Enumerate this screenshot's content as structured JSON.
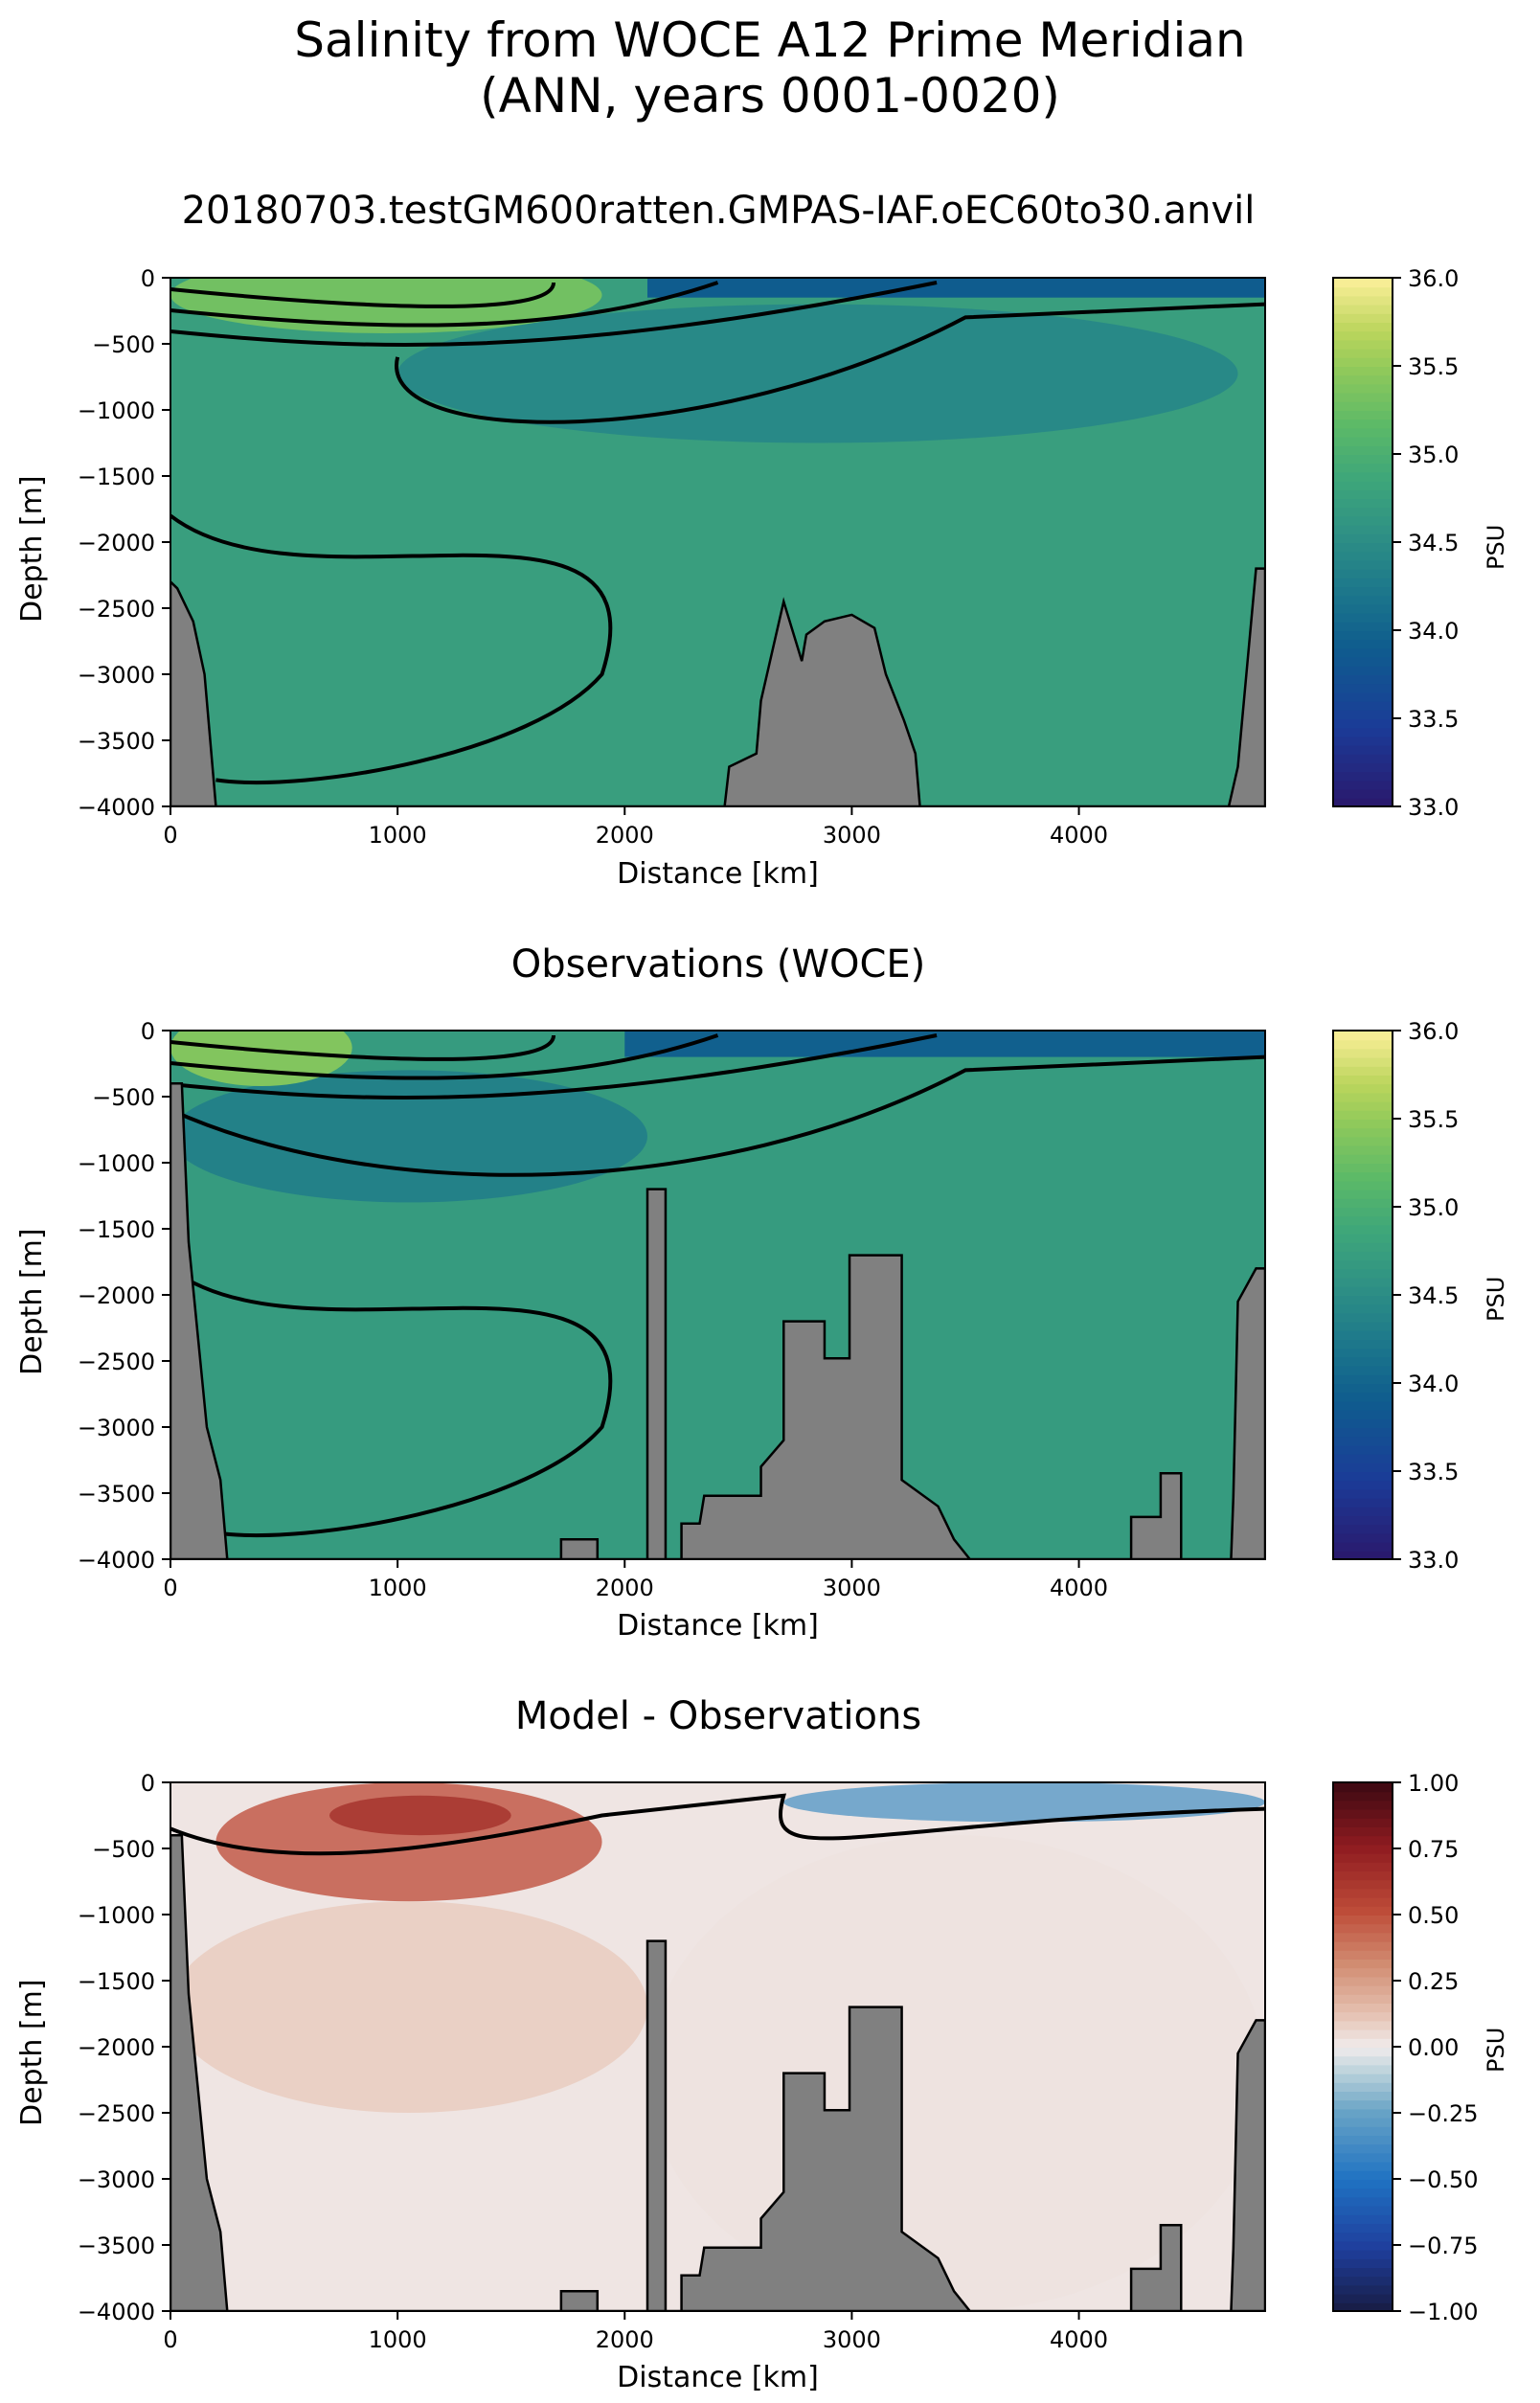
{
  "figure": {
    "title_line1": "Salinity from WOCE A12 Prime Meridian",
    "title_line2": "(ANN, years 0001-0020)"
  },
  "chart_data": [
    {
      "type": "heatmap",
      "title": "20180703.testGM600ratten.GMPAS-IAF.oEC60to30.anvil",
      "xlabel": "Distance [km]",
      "ylabel": "Depth [m]",
      "xlim": [
        0,
        4820
      ],
      "ylim": [
        -4000,
        0
      ],
      "xticks": [
        0,
        1000,
        2000,
        3000,
        4000
      ],
      "yticks": [
        0,
        -500,
        -1000,
        -1500,
        -2000,
        -2500,
        -3000,
        -3500,
        -4000
      ],
      "colorbar": {
        "label": "PSU",
        "range": [
          33.0,
          36.0
        ],
        "ticks": [
          33.0,
          33.5,
          34.0,
          34.5,
          35.0,
          35.5,
          36.0
        ],
        "colormap": "haline"
      },
      "contour_levels": [
        34.2,
        34.4,
        34.6,
        34.8,
        35.0,
        35.2
      ],
      "background_salinity": 34.75,
      "fresh_surface": {
        "x_range": [
          2100,
          4820
        ],
        "depth_m": 150,
        "value": 33.9
      },
      "salty_surface": {
        "x_range": [
          0,
          1900
        ],
        "value": 35.3
      },
      "intermediate_water": {
        "x_range": [
          1000,
          4700
        ],
        "depth_range": [
          -1250,
          -200
        ],
        "value": 34.4
      },
      "bathymetry": [
        [
          0,
          -2300
        ],
        [
          30,
          -2350
        ],
        [
          100,
          -2600
        ],
        [
          150,
          -3000
        ],
        [
          200,
          -4000
        ],
        [
          2440,
          -4000
        ],
        [
          2460,
          -3700
        ],
        [
          2580,
          -3600
        ],
        [
          2600,
          -3200
        ],
        [
          2700,
          -2450
        ],
        [
          2780,
          -2900
        ],
        [
          2800,
          -2700
        ],
        [
          2880,
          -2600
        ],
        [
          3000,
          -2550
        ],
        [
          3100,
          -2650
        ],
        [
          3150,
          -3000
        ],
        [
          3230,
          -3350
        ],
        [
          3280,
          -3600
        ],
        [
          3300,
          -4000
        ],
        [
          4660,
          -4000
        ],
        [
          4700,
          -3700
        ],
        [
          4780,
          -2200
        ],
        [
          4820,
          -2200
        ]
      ]
    },
    {
      "type": "heatmap",
      "title": "Observations (WOCE)",
      "xlabel": "Distance [km]",
      "ylabel": "Depth [m]",
      "xlim": [
        0,
        4820
      ],
      "ylim": [
        -4000,
        0
      ],
      "xticks": [
        0,
        1000,
        2000,
        3000,
        4000
      ],
      "yticks": [
        0,
        -500,
        -1000,
        -1500,
        -2000,
        -2500,
        -3000,
        -3500,
        -4000
      ],
      "colorbar": {
        "label": "PSU",
        "range": [
          33.0,
          36.0
        ],
        "ticks": [
          33.0,
          33.5,
          34.0,
          34.5,
          35.0,
          35.5,
          36.0
        ],
        "colormap": "haline"
      },
      "contour_levels": [
        34.2,
        34.4,
        34.6,
        34.8,
        35.0,
        35.2
      ],
      "background_salinity": 34.7,
      "fresh_surface": {
        "x_range": [
          2000,
          4820
        ],
        "depth_m": 200,
        "value": 33.95
      },
      "salty_surface": {
        "x_range": [
          0,
          800
        ],
        "value": 35.4
      },
      "intermediate_water": {
        "x_range": [
          0,
          2100
        ],
        "depth_range": [
          -1300,
          -300
        ],
        "value": 34.3
      },
      "bathymetry": [
        [
          0,
          -400
        ],
        [
          50,
          -400
        ],
        [
          80,
          -1600
        ],
        [
          120,
          -2300
        ],
        [
          160,
          -3000
        ],
        [
          220,
          -3400
        ],
        [
          250,
          -4000
        ],
        [
          1720,
          -4000
        ],
        [
          1720,
          -3850
        ],
        [
          1880,
          -3850
        ],
        [
          1880,
          -4000
        ],
        [
          2100,
          -4000
        ],
        [
          2100,
          -1200
        ],
        [
          2180,
          -1200
        ],
        [
          2180,
          -4000
        ],
        [
          2250,
          -4000
        ],
        [
          2250,
          -3730
        ],
        [
          2330,
          -3730
        ],
        [
          2350,
          -3520
        ],
        [
          2600,
          -3520
        ],
        [
          2600,
          -3300
        ],
        [
          2700,
          -3100
        ],
        [
          2700,
          -2200
        ],
        [
          2880,
          -2200
        ],
        [
          2880,
          -2480
        ],
        [
          2990,
          -2480
        ],
        [
          2990,
          -1700
        ],
        [
          3220,
          -1700
        ],
        [
          3220,
          -3400
        ],
        [
          3380,
          -3600
        ],
        [
          3450,
          -3850
        ],
        [
          3520,
          -4000
        ],
        [
          4230,
          -4000
        ],
        [
          4230,
          -3680
        ],
        [
          4360,
          -3680
        ],
        [
          4360,
          -3350
        ],
        [
          4450,
          -3350
        ],
        [
          4450,
          -4000
        ],
        [
          4670,
          -4000
        ],
        [
          4680,
          -3530
        ],
        [
          4700,
          -2050
        ],
        [
          4780,
          -1800
        ],
        [
          4820,
          -1800
        ]
      ]
    },
    {
      "type": "heatmap",
      "title": "Model - Observations",
      "xlabel": "Distance [km]",
      "ylabel": "Depth [m]",
      "xlim": [
        0,
        4820
      ],
      "ylim": [
        -4000,
        0
      ],
      "xticks": [
        0,
        1000,
        2000,
        3000,
        4000
      ],
      "yticks": [
        0,
        -500,
        -1000,
        -1500,
        -2000,
        -2500,
        -3000,
        -3500,
        -4000
      ],
      "colorbar": {
        "label": "PSU",
        "range": [
          -1.0,
          1.0
        ],
        "ticks": [
          -1.0,
          -0.75,
          -0.5,
          -0.25,
          0.0,
          0.25,
          0.5,
          0.75,
          1.0
        ],
        "colormap": "balance"
      },
      "contour_levels": [
        -0.25,
        0.25
      ],
      "anomalies": [
        {
          "x_range": [
            200,
            1900
          ],
          "depth_range": [
            -900,
            0
          ],
          "value": 0.5
        },
        {
          "x_range": [
            700,
            1500
          ],
          "depth_range": [
            -400,
            -100
          ],
          "value": 0.65
        },
        {
          "x_range": [
            2700,
            4820
          ],
          "depth_range": [
            -300,
            0
          ],
          "value": -0.3
        },
        {
          "x_range": [
            0,
            2100
          ],
          "depth_range": [
            -2500,
            -900
          ],
          "value": 0.1
        },
        {
          "x_range": [
            2100,
            4820
          ],
          "depth_range": [
            -4000,
            -400
          ],
          "value": 0.03
        }
      ],
      "bathymetry": [
        [
          0,
          -400
        ],
        [
          50,
          -400
        ],
        [
          80,
          -1600
        ],
        [
          120,
          -2300
        ],
        [
          160,
          -3000
        ],
        [
          220,
          -3400
        ],
        [
          250,
          -4000
        ],
        [
          1720,
          -4000
        ],
        [
          1720,
          -3850
        ],
        [
          1880,
          -3850
        ],
        [
          1880,
          -4000
        ],
        [
          2100,
          -4000
        ],
        [
          2100,
          -1200
        ],
        [
          2180,
          -1200
        ],
        [
          2180,
          -4000
        ],
        [
          2250,
          -4000
        ],
        [
          2250,
          -3730
        ],
        [
          2330,
          -3730
        ],
        [
          2350,
          -3520
        ],
        [
          2600,
          -3520
        ],
        [
          2600,
          -3300
        ],
        [
          2700,
          -3100
        ],
        [
          2700,
          -2200
        ],
        [
          2880,
          -2200
        ],
        [
          2880,
          -2480
        ],
        [
          2990,
          -2480
        ],
        [
          2990,
          -1700
        ],
        [
          3220,
          -1700
        ],
        [
          3220,
          -3400
        ],
        [
          3380,
          -3600
        ],
        [
          3450,
          -3850
        ],
        [
          3520,
          -4000
        ],
        [
          4230,
          -4000
        ],
        [
          4230,
          -3680
        ],
        [
          4360,
          -3680
        ],
        [
          4360,
          -3350
        ],
        [
          4450,
          -3350
        ],
        [
          4450,
          -4000
        ],
        [
          4670,
          -4000
        ],
        [
          4680,
          -3530
        ],
        [
          4700,
          -2050
        ],
        [
          4780,
          -1800
        ],
        [
          4820,
          -1800
        ]
      ]
    }
  ]
}
